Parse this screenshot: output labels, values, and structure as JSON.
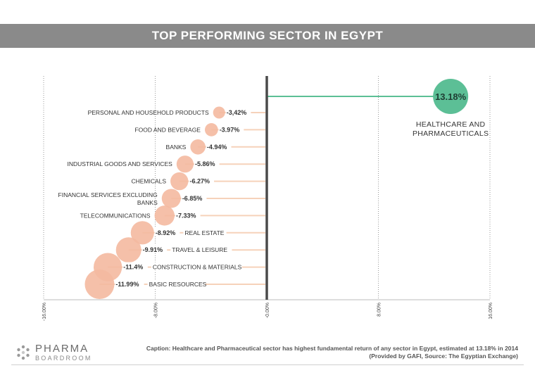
{
  "title": "TOP PERFORMING SECTOR IN EGYPT",
  "chart_data": {
    "type": "bubble-lollipop",
    "xlim": [
      -16,
      16
    ],
    "x_ticks": [
      "-16.00%",
      "-8.00%",
      "-0.00%",
      "8.00%",
      "16.00%"
    ],
    "x_tick_values": [
      -16,
      -8,
      0,
      8,
      16
    ],
    "colors": {
      "negative": "#f4b9a0",
      "negative_line": "#f6d2ba",
      "positive": "#5cbf96",
      "axis": "#4a4a4a",
      "grid": "#9a9a9a"
    },
    "positive": {
      "sector": "HEALTHCARE AND PHARMACEUTICALS",
      "value": 13.18,
      "label": "13.18%",
      "label_lines": [
        "HEALTHCARE AND",
        "PHARMACEUTICALS"
      ]
    },
    "series": [
      {
        "sector": "PERSONAL AND HOUSEHOLD PRODUCTS",
        "label_lines": [
          "PERSONAL AND HOUSEHOLD PRODUCTS"
        ],
        "value": -3.42,
        "label": "-3,42%",
        "name_side": "left"
      },
      {
        "sector": "FOOD AND BEVERAGE",
        "label_lines": [
          "FOOD AND BEVERAGE"
        ],
        "value": -3.97,
        "label": "-3.97%",
        "name_side": "left"
      },
      {
        "sector": "BANKS",
        "label_lines": [
          "BANKS"
        ],
        "value": -4.94,
        "label": "-4.94%",
        "name_side": "left"
      },
      {
        "sector": "INDUSTRIAL GOODS AND SERVICES",
        "label_lines": [
          "INDUSTRIAL GOODS AND SERVICES"
        ],
        "value": -5.86,
        "label": "-5.86%",
        "name_side": "left"
      },
      {
        "sector": "CHEMICALS",
        "label_lines": [
          "CHEMICALS"
        ],
        "value": -6.27,
        "label": "-6.27%",
        "name_side": "left"
      },
      {
        "sector": "FINANCIAL SERVICES EXCLUDING BANKS",
        "label_lines": [
          "FINANCIAL SERVICES EXCLUDING",
          "BANKS"
        ],
        "value": -6.85,
        "label": "-6.85%",
        "name_side": "left"
      },
      {
        "sector": "TELECOMMUNICATIONS",
        "label_lines": [
          "TELECOMMUNICATIONS"
        ],
        "value": -7.33,
        "label": "-7.33%",
        "name_side": "left"
      },
      {
        "sector": "REAL ESTATE",
        "label_lines": [
          "REAL ESTATE"
        ],
        "value": -8.92,
        "label": "-8.92%",
        "name_side": "right"
      },
      {
        "sector": "TRAVEL & LEISURE",
        "label_lines": [
          "TRAVEL & LEISURE"
        ],
        "value": -9.91,
        "label": "-9.91%",
        "name_side": "right"
      },
      {
        "sector": "CONSTRUCTION & MATERIALS",
        "label_lines": [
          "CONSTRUCTION & MATERIALS"
        ],
        "value": -11.4,
        "label": "-11.4%",
        "name_side": "right"
      },
      {
        "sector": "BASIC RESOURCES",
        "label_lines": [
          "BASIC RESOURCES"
        ],
        "value": -11.99,
        "label": "-11.99%",
        "name_side": "right"
      }
    ]
  },
  "footer": {
    "logo_top": "PHARMA",
    "logo_bottom": "BOARDROOM",
    "caption_line1": "Caption: Healthcare and Pharmaceutical sector has highest fundamental return of any sector in Egypt, estimated at 13.18% in 2014",
    "caption_line2": "(Provided by GAFI, Source: The Egyptian Exchange)"
  }
}
